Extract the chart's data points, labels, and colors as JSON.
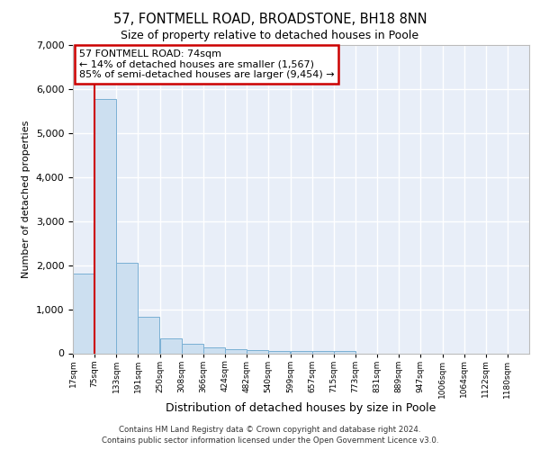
{
  "title1": "57, FONTMELL ROAD, BROADSTONE, BH18 8NN",
  "title2": "Size of property relative to detached houses in Poole",
  "xlabel": "Distribution of detached houses by size in Poole",
  "ylabel": "Number of detached properties",
  "bar_color": "#ccdff0",
  "bar_edge_color": "#7ab0d4",
  "background_color": "#e8eef8",
  "grid_color": "#ffffff",
  "annotation_box_edge": "#cc0000",
  "annotation_text": "57 FONTMELL ROAD: 74sqm\n← 14% of detached houses are smaller (1,567)\n85% of semi-detached houses are larger (9,454) →",
  "vline_x": 74,
  "vline_color": "#cc0000",
  "footer_line1": "Contains HM Land Registry data © Crown copyright and database right 2024.",
  "footer_line2": "Contains public sector information licensed under the Open Government Licence v3.0.",
  "bin_left_edges": [
    17,
    75,
    133,
    191,
    250,
    308,
    366,
    424,
    482,
    540,
    599,
    657,
    715,
    773,
    831,
    889,
    947,
    1006,
    1064,
    1122,
    1180
  ],
  "tick_labels": [
    "17sqm",
    "75sqm",
    "133sqm",
    "191sqm",
    "250sqm",
    "308sqm",
    "366sqm",
    "424sqm",
    "482sqm",
    "540sqm",
    "599sqm",
    "657sqm",
    "715sqm",
    "773sqm",
    "831sqm",
    "889sqm",
    "947sqm",
    "1006sqm",
    "1064sqm",
    "1122sqm",
    "1180sqm"
  ],
  "values": [
    1800,
    5780,
    2060,
    820,
    340,
    215,
    130,
    100,
    70,
    60,
    55,
    50,
    55,
    0,
    0,
    0,
    0,
    0,
    0,
    0,
    0
  ],
  "ylim": [
    0,
    7000
  ],
  "yticks": [
    0,
    1000,
    2000,
    3000,
    4000,
    5000,
    6000,
    7000
  ],
  "bin_width": 58,
  "xlim_min": 17,
  "xlim_max": 1238,
  "title1_fontsize": 10.5,
  "title2_fontsize": 9,
  "ylabel_fontsize": 8,
  "xlabel_fontsize": 9,
  "ytick_fontsize": 8,
  "xtick_fontsize": 6.5,
  "annotation_fontsize": 8,
  "footer_fontsize": 6.2
}
